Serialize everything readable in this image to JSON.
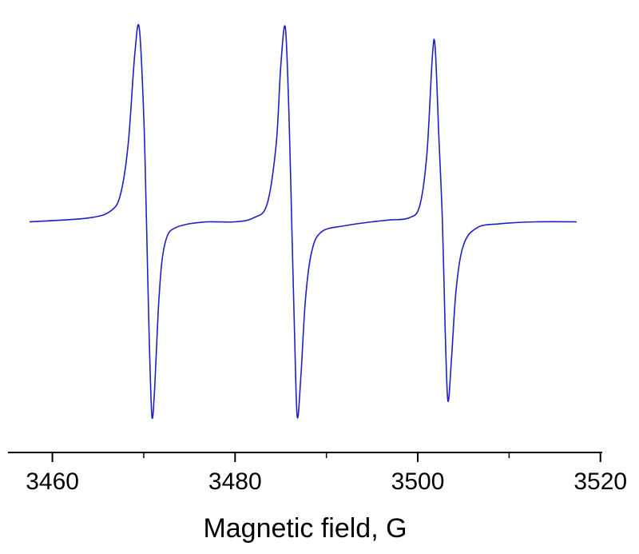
{
  "chart_data": {
    "type": "line",
    "title": "",
    "xlabel": "Magnetic field, G",
    "ylabel": "",
    "xlim": [
      3456,
      3520
    ],
    "ylim": [
      -1.0,
      1.0
    ],
    "xticks": [
      3460,
      3480,
      3500,
      3520
    ],
    "xtick_labels": [
      "3460",
      "3480",
      "3500",
      "3520"
    ],
    "x_minor_tick_step": 10,
    "y_axis_visible": false,
    "grid": false,
    "legend": "none",
    "series": [
      {
        "color": "#1f1fc8",
        "x": [
          3457.5,
          3464,
          3466.5,
          3467.5,
          3468.3,
          3469.0,
          3469.5,
          3470.0,
          3470.3,
          3470.6,
          3470.9,
          3471.2,
          3471.6,
          3472.0,
          3472.6,
          3473.5,
          3475.0,
          3477.0,
          3480.0,
          3482.0,
          3483.5,
          3484.5,
          3485.0,
          3485.5,
          3485.9,
          3486.2,
          3486.5,
          3486.8,
          3487.2,
          3487.7,
          3488.4,
          3489.5,
          3492.0,
          3495.0,
          3497.0,
          3499.0,
          3500.2,
          3501.0,
          3501.6,
          3501.9,
          3502.3,
          3502.7,
          3503.0,
          3503.3,
          3503.7,
          3504.2,
          3505.0,
          3506.5,
          3509.0,
          3513.0,
          3517.4
        ],
        "y": [
          0.0,
          0.02,
          0.06,
          0.15,
          0.4,
          0.85,
          1.0,
          0.55,
          0.0,
          -0.6,
          -1.0,
          -0.85,
          -0.45,
          -0.2,
          -0.07,
          -0.03,
          -0.01,
          0.0,
          0.0,
          0.02,
          0.09,
          0.4,
          0.8,
          1.0,
          0.55,
          0.0,
          -0.55,
          -1.0,
          -0.8,
          -0.4,
          -0.15,
          -0.05,
          -0.02,
          0.0,
          0.01,
          0.02,
          0.08,
          0.35,
          0.85,
          0.9,
          0.45,
          0.0,
          -0.55,
          -0.92,
          -0.7,
          -0.35,
          -0.12,
          -0.03,
          -0.01,
          0.0,
          0.0
        ]
      }
    ]
  }
}
